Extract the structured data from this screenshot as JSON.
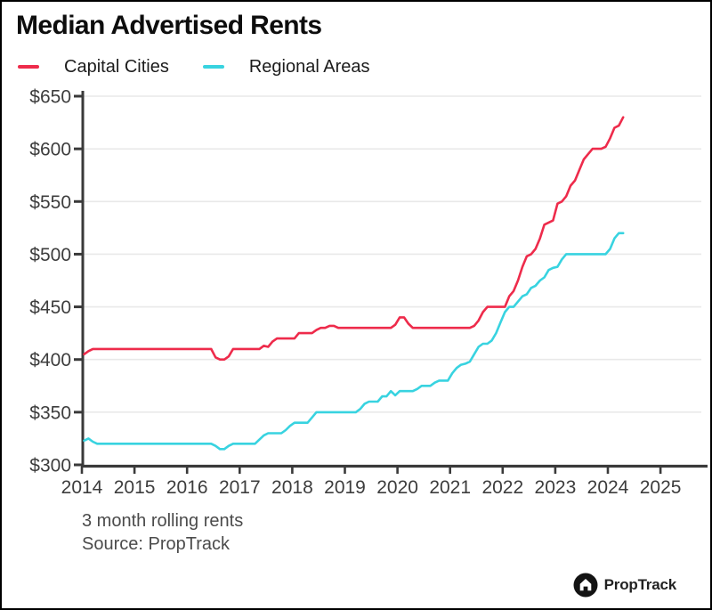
{
  "title": "Median Advertised Rents",
  "legend": [
    {
      "label": "Capital Cities",
      "color": "#ee2b4b"
    },
    {
      "label": "Regional Areas",
      "color": "#38d3e0"
    }
  ],
  "footnote": {
    "line1": "3 month rolling rents",
    "line2": "Source: PropTrack"
  },
  "logo": {
    "text": "PropTrack"
  },
  "colors": {
    "axis": "#3a3a3a",
    "grid": "#e9e9e9",
    "tick_label": "#3d3d3d",
    "capital": "#ee2b4b",
    "regional": "#38d3e0"
  },
  "chart_data": {
    "type": "line",
    "title": "Median Advertised Rents",
    "subtitle": "3 month rolling rents",
    "source": "Source: PropTrack",
    "xlabel": "",
    "ylabel": "",
    "grid": "horizontal-only",
    "legend_position": "top-left",
    "ylim": [
      300,
      650
    ],
    "xlim": [
      2014,
      2025.9
    ],
    "y_ticks": [
      {
        "value": 300,
        "label": "$300"
      },
      {
        "value": 350,
        "label": "$350"
      },
      {
        "value": 400,
        "label": "$400"
      },
      {
        "value": 450,
        "label": "$450"
      },
      {
        "value": 500,
        "label": "$500"
      },
      {
        "value": 550,
        "label": "$550"
      },
      {
        "value": 600,
        "label": "$600"
      },
      {
        "value": 650,
        "label": "$650"
      }
    ],
    "x_ticks": [
      2014,
      2015,
      2016,
      2017,
      2018,
      2019,
      2020,
      2021,
      2022,
      2023,
      2024,
      2025
    ],
    "x_start_year": 2014,
    "x_step": "monthly",
    "series": [
      {
        "name": "Capital Cities",
        "color": "#ee2b4b",
        "values": [
          405,
          408,
          410,
          410,
          410,
          410,
          410,
          410,
          410,
          410,
          410,
          410,
          410,
          410,
          410,
          410,
          410,
          410,
          410,
          410,
          410,
          410,
          410,
          410,
          410,
          410,
          410,
          410,
          410,
          410,
          402,
          400,
          400,
          403,
          410,
          410,
          410,
          410,
          410,
          410,
          410,
          413,
          412,
          417,
          420,
          420,
          420,
          420,
          420,
          425,
          425,
          425,
          425,
          428,
          430,
          430,
          432,
          432,
          430,
          430,
          430,
          430,
          430,
          430,
          430,
          430,
          430,
          430,
          430,
          430,
          430,
          433,
          440,
          440,
          434,
          430,
          430,
          430,
          430,
          430,
          430,
          430,
          430,
          430,
          430,
          430,
          430,
          430,
          430,
          432,
          437,
          445,
          450,
          450,
          450,
          450,
          450,
          460,
          465,
          475,
          488,
          498,
          500,
          505,
          515,
          528,
          530,
          532,
          548,
          550,
          555,
          565,
          570,
          580,
          590,
          595,
          600,
          600,
          600,
          602,
          610,
          620,
          622,
          630
        ]
      },
      {
        "name": "Regional Areas",
        "color": "#38d3e0",
        "values": [
          323,
          325,
          322,
          320,
          320,
          320,
          320,
          320,
          320,
          320,
          320,
          320,
          320,
          320,
          320,
          320,
          320,
          320,
          320,
          320,
          320,
          320,
          320,
          320,
          320,
          320,
          320,
          320,
          320,
          320,
          318,
          315,
          315,
          318,
          320,
          320,
          320,
          320,
          320,
          320,
          324,
          328,
          330,
          330,
          330,
          330,
          333,
          337,
          340,
          340,
          340,
          340,
          345,
          350,
          350,
          350,
          350,
          350,
          350,
          350,
          350,
          350,
          350,
          353,
          358,
          360,
          360,
          360,
          365,
          365,
          370,
          366,
          370,
          370,
          370,
          370,
          372,
          375,
          375,
          375,
          378,
          380,
          380,
          380,
          387,
          392,
          395,
          396,
          398,
          405,
          412,
          415,
          415,
          418,
          425,
          435,
          445,
          450,
          450,
          455,
          460,
          462,
          468,
          470,
          475,
          478,
          485,
          487,
          488,
          495,
          500,
          500,
          500,
          500,
          500,
          500,
          500,
          500,
          500,
          500,
          505,
          515,
          520,
          520
        ]
      }
    ]
  }
}
